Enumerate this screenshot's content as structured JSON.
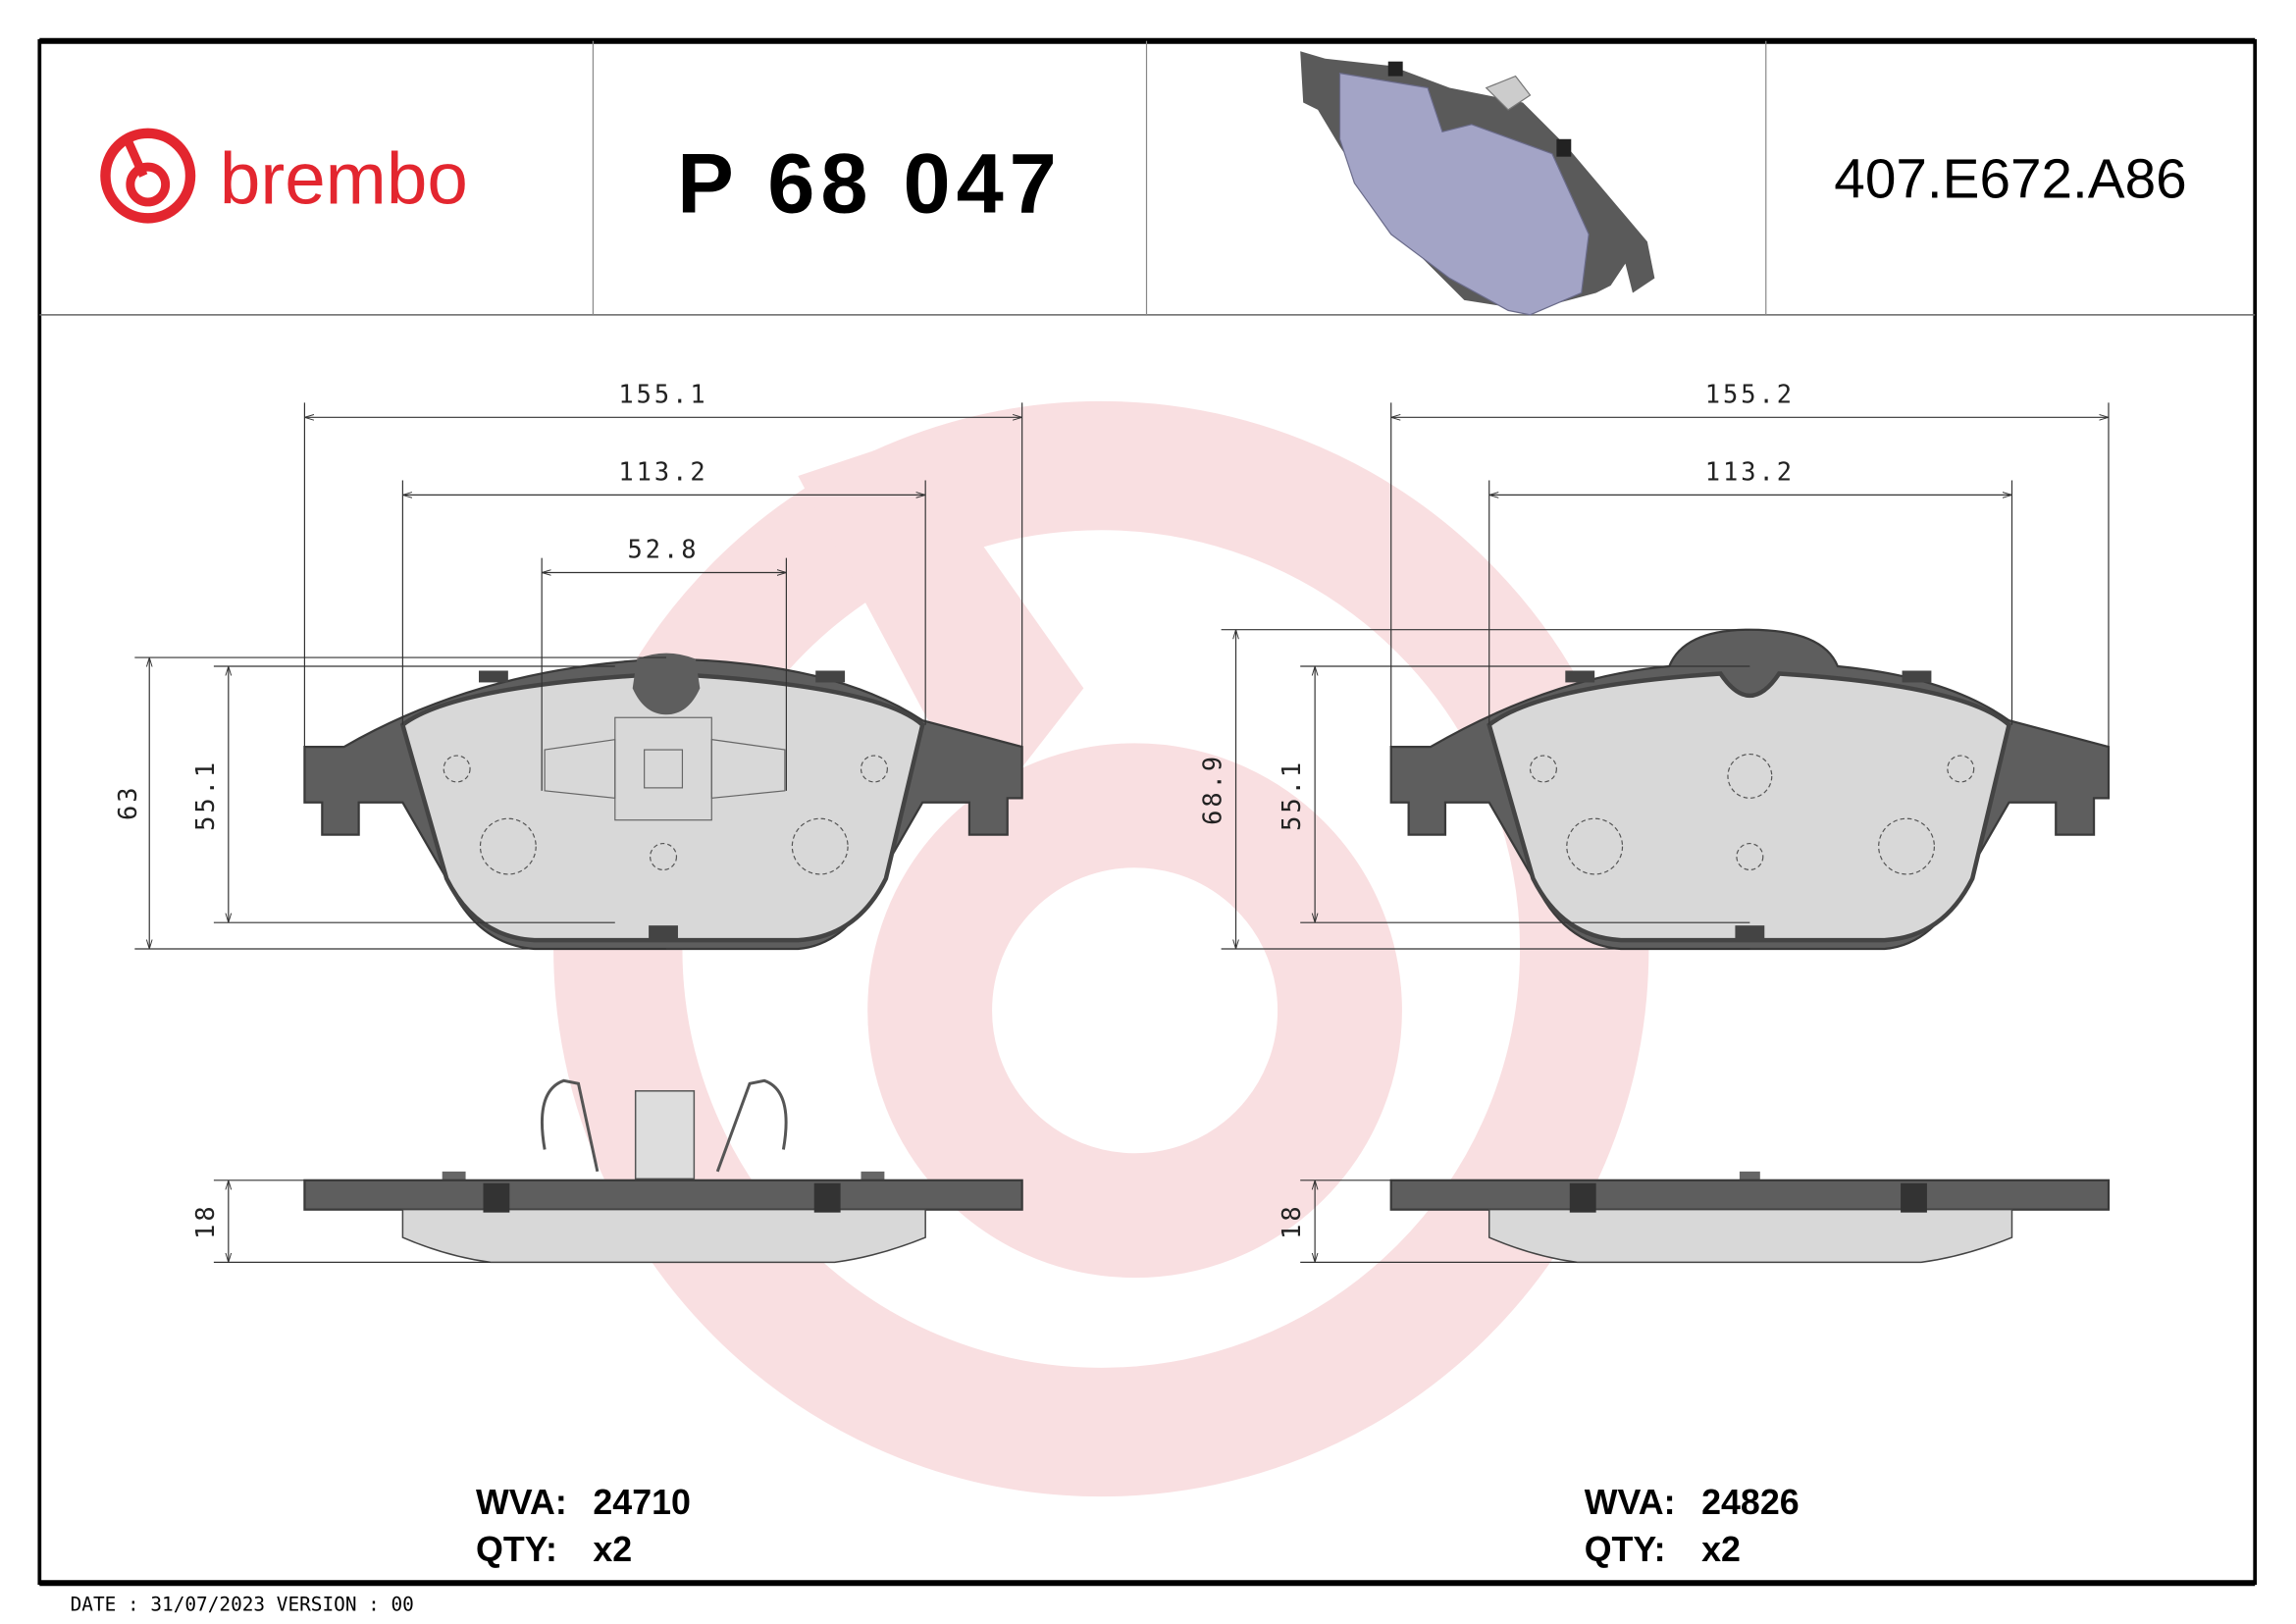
{
  "header": {
    "logo_text": "brembo",
    "part_number": "P 68 047",
    "reference_code": "407.E672.A86"
  },
  "colors": {
    "brand_red": "#e3262f",
    "watermark": "#f7d6d8",
    "backing_plate": "#5e5e5e",
    "friction_material": "#d8d8d8",
    "render_pad": "#a3a4c6"
  },
  "left_pad": {
    "dimensions": {
      "overall_width": "155.1",
      "inner_width": "113.2",
      "clip_width": "52.8",
      "overall_height": "63",
      "friction_height": "55.1",
      "thickness": "18"
    },
    "wva_label": "WVA:",
    "wva_value": "24710",
    "qty_label": "QTY:",
    "qty_value": "x2"
  },
  "right_pad": {
    "dimensions": {
      "overall_width": "155.2",
      "inner_width": "113.2",
      "overall_height": "68.9",
      "friction_height": "55.1",
      "thickness": "18"
    },
    "wva_label": "WVA:",
    "wva_value": "24826",
    "qty_label": "QTY:",
    "qty_value": "x2"
  },
  "footer": {
    "date_version": "DATE : 31/07/2023 VERSION : 00"
  }
}
